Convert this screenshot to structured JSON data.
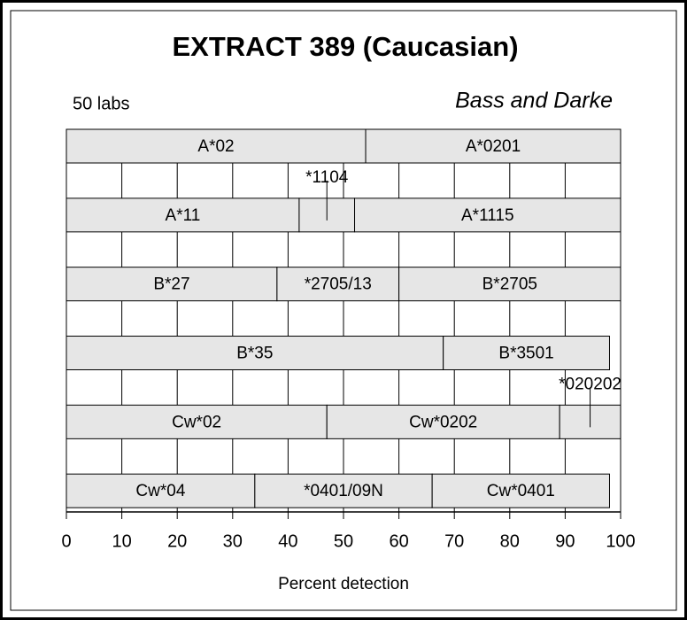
{
  "chart_data": {
    "type": "stacked_hbar",
    "title": "EXTRACT 389 (Caucasian)",
    "subtitle": "50 labs",
    "annotation": "Bass and Darke",
    "xlabel": "Percent detection",
    "xlim": [
      0,
      100
    ],
    "xticks": [
      0,
      10,
      20,
      30,
      40,
      50,
      60,
      70,
      80,
      90,
      100
    ],
    "grid": true,
    "color": "#e6e6e6",
    "rows": [
      {
        "segments": [
          {
            "name": "A*02",
            "value": 54
          },
          {
            "name": "A*0201",
            "value": 46
          }
        ]
      },
      {
        "segments": [
          {
            "name": "A*11",
            "value": 42
          },
          {
            "name": "*1104",
            "value": 10
          },
          {
            "name": "A*1115",
            "value": 48
          }
        ]
      },
      {
        "segments": [
          {
            "name": "B*27",
            "value": 38
          },
          {
            "name": "*2705/13",
            "value": 22
          },
          {
            "name": "B*2705",
            "value": 40
          }
        ]
      },
      {
        "segments": [
          {
            "name": "B*35",
            "value": 68
          },
          {
            "name": "B*3501",
            "value": 30
          }
        ]
      },
      {
        "segments": [
          {
            "name": "Cw*02",
            "value": 47
          },
          {
            "name": "Cw*0202",
            "value": 42
          },
          {
            "name": "*020202",
            "value": 11
          }
        ]
      },
      {
        "segments": [
          {
            "name": "Cw*04",
            "value": 34
          },
          {
            "name": "*0401/09N",
            "value": 32
          },
          {
            "name": "Cw*0401",
            "value": 32
          }
        ]
      }
    ]
  }
}
